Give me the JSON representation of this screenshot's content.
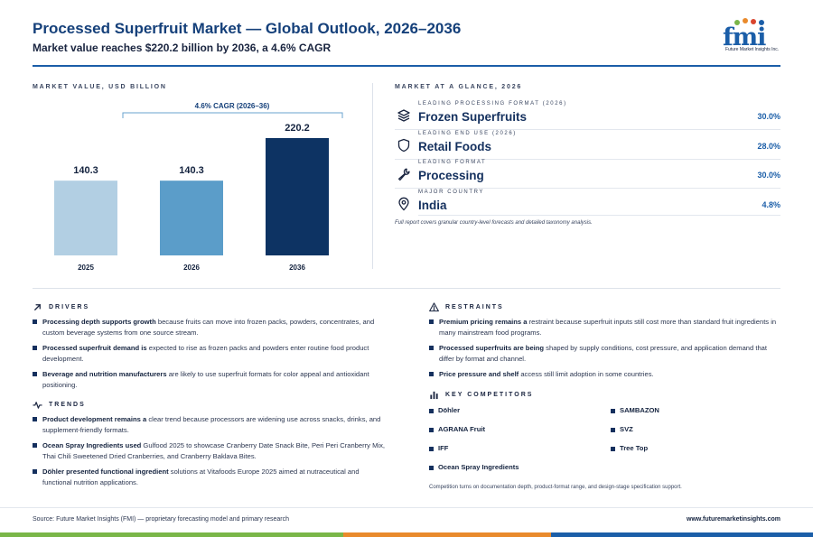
{
  "header": {
    "title": "Processed Superfruit Market — Global Outlook, 2026–2036",
    "subtitle": "Market value reaches $220.2 billion by 2036, a 4.6% CAGR",
    "logo_text": "fmi",
    "logo_sub": "Future Market Insights Inc."
  },
  "chart_section": {
    "label": "MARKET VALUE, USD BILLION"
  },
  "chart_data": {
    "type": "bar",
    "categories": [
      "2025",
      "2026",
      "2036"
    ],
    "values": [
      140.3,
      140.3,
      220.2
    ],
    "value_labels": [
      "140.3",
      "140.3",
      "220.2"
    ],
    "colors": [
      "#b2cfe3",
      "#5b9dc9",
      "#0d3363"
    ],
    "annotation": "4.6% CAGR (2026–36)",
    "ylim": [
      0,
      230
    ]
  },
  "glance": {
    "label": "MARKET AT A GLANCE, 2026",
    "items": [
      {
        "label": "LEADING PROCESSING FORMAT (2026)",
        "value": "Frozen Superfruits",
        "pct": "30.0%",
        "icon": "layers-icon"
      },
      {
        "label": "LEADING END USE (2026)",
        "value": "Retail Foods",
        "pct": "28.0%",
        "icon": "shield-icon"
      },
      {
        "label": "LEADING FORMAT",
        "value": "Processing",
        "pct": "30.0%",
        "icon": "wrench-icon"
      },
      {
        "label": "MAJOR COUNTRY",
        "value": "India",
        "pct": "4.8%",
        "icon": "location-pin-icon"
      }
    ],
    "note": "Full report covers granular country-level forecasts and detailed taxonomy analysis."
  },
  "drivers": {
    "label": "DRIVERS",
    "items": [
      {
        "bold": "Processing depth supports growth",
        "text": " because fruits can move into frozen packs, powders, concentrates, and custom beverage systems from one source stream."
      },
      {
        "bold": "Processed superfruit demand is",
        "text": " expected to rise as frozen packs and powders enter routine food product development."
      },
      {
        "bold": "Beverage and nutrition manufacturers",
        "text": " are likely to use superfruit formats for color appeal and antioxidant positioning."
      }
    ]
  },
  "trends": {
    "label": "TRENDS",
    "items": [
      {
        "bold": "Product development remains a",
        "text": " clear trend because processors are widening use across snacks, drinks, and supplement-friendly formats."
      },
      {
        "bold": "Ocean Spray Ingredients used",
        "text": " Gulfood 2025 to showcase Cranberry Date Snack Bite, Peri Peri Cranberry Mix, Thai Chili Sweetened Dried Cranberries, and Cranberry Baklava Bites."
      },
      {
        "bold": "Döhler presented functional ingredient",
        "text": " solutions at Vitafoods Europe 2025 aimed at nutraceutical and functional nutrition applications."
      }
    ]
  },
  "restraints": {
    "label": "RESTRAINTS",
    "items": [
      {
        "bold": "Premium pricing remains a",
        "text": " restraint because superfruit inputs still cost more than standard fruit ingredients in many mainstream food programs."
      },
      {
        "bold": "Processed superfruits are being",
        "text": " shaped by supply conditions, cost pressure, and application demand that differ by format and channel."
      },
      {
        "bold": "Price pressure and shelf",
        "text": " access still limit adoption in some countries."
      }
    ]
  },
  "competitors": {
    "label": "KEY COMPETITORS",
    "items": [
      "Döhler",
      "SAMBAZON",
      "AGRANA Fruit",
      "SVZ",
      "IFF",
      "Tree Top",
      "Ocean Spray Ingredients"
    ],
    "note": "Competition turns on documentation depth, product-format range, and design-stage specification support."
  },
  "footer": {
    "source": "Source: Future Market Insights (FMI) — proprietary forecasting model and primary research",
    "url": "www.futuremarketinsights.com"
  },
  "colors": {
    "brand_blue": "#1b5ea8",
    "navy": "#14305e",
    "bar_green": "#7ab648",
    "bar_orange": "#e98a2c",
    "bar_blue": "#1b5ea8"
  }
}
